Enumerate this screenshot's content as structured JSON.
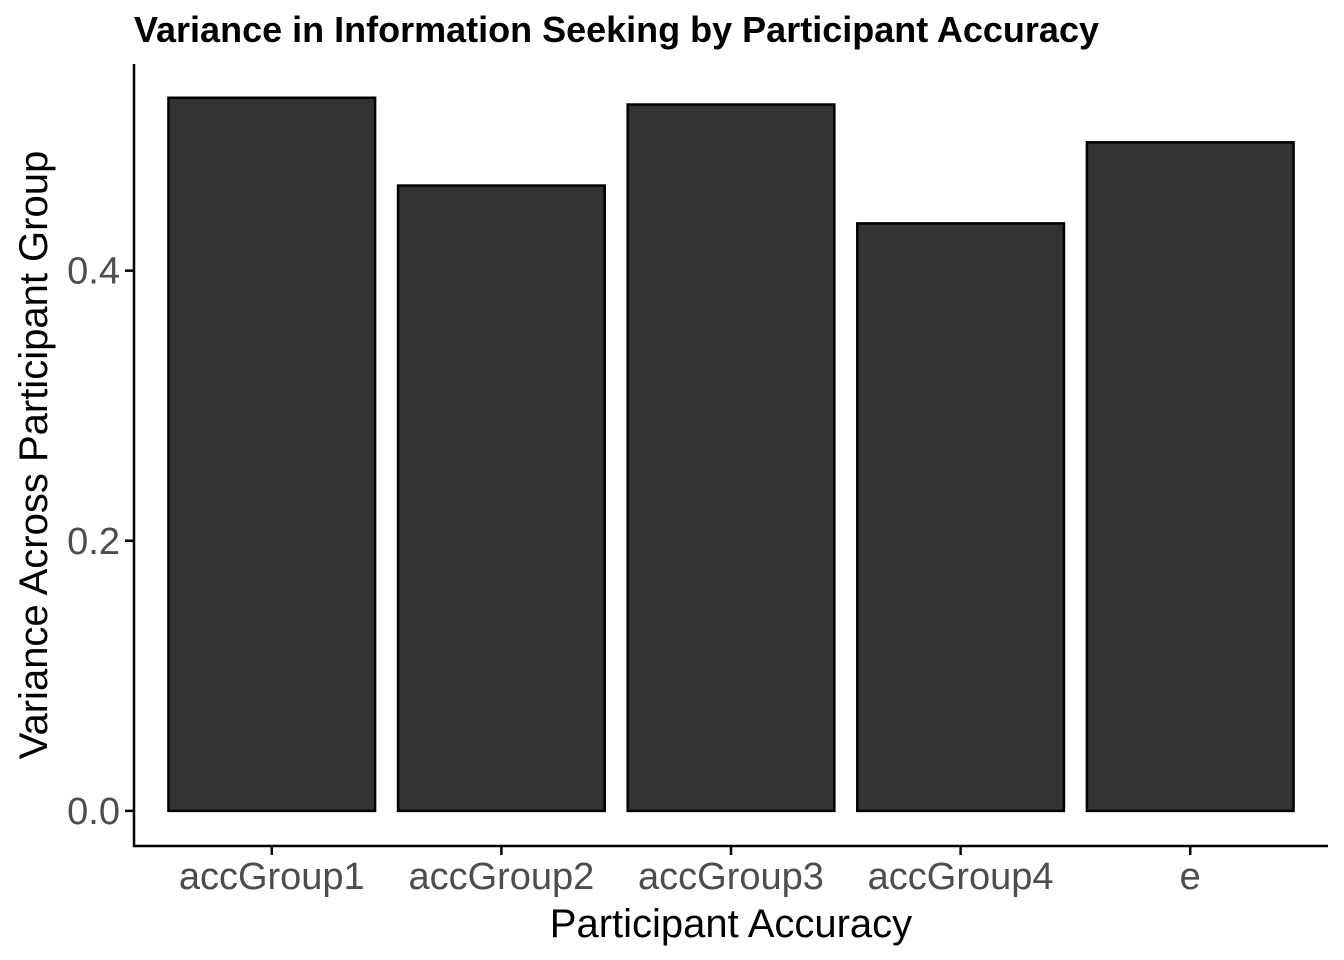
{
  "chart_data": {
    "type": "bar",
    "title": "Variance in Information Seeking by Participant Accuracy",
    "xlabel": "Participant Accuracy",
    "ylabel": "Variance Across Participant Group",
    "categories": [
      "accGroup1",
      "accGroup2",
      "accGroup3",
      "accGroup4",
      "e"
    ],
    "values": [
      0.528,
      0.463,
      0.523,
      0.435,
      0.495
    ],
    "ylim": [
      -0.026,
      0.553
    ],
    "yticks": [
      0.0,
      0.2,
      0.4
    ],
    "ytick_labels": [
      "0.0",
      "0.2",
      "0.4"
    ],
    "grid": false,
    "legend": "none",
    "colors": {
      "bar_fill": "#333333",
      "bar_stroke": "#000000",
      "axis": "#000000",
      "tick_label": "#4d4d4d"
    }
  }
}
